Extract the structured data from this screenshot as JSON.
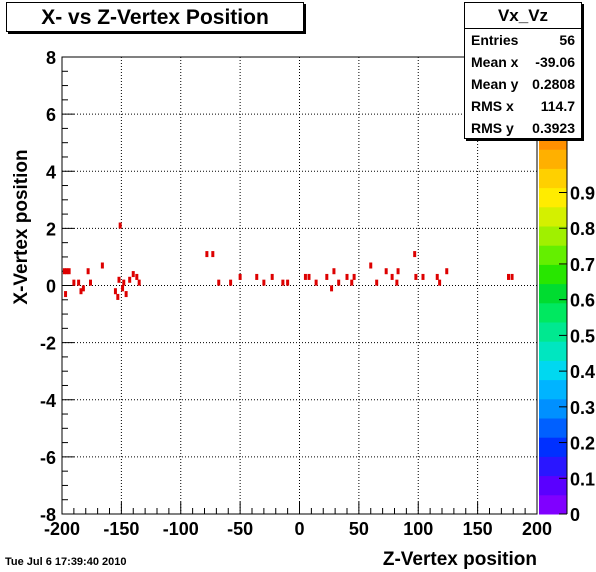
{
  "chart_data": {
    "type": "scatter",
    "title": "X- vs Z-Vertex Position",
    "xlabel": "Z-Vertex position",
    "ylabel": "X-Vertex position",
    "xlim": [
      -200,
      200
    ],
    "ylim": [
      -8,
      8
    ],
    "xticks": [
      -200,
      -150,
      -100,
      -50,
      0,
      50,
      100,
      150,
      200
    ],
    "yticks": [
      -8,
      -6,
      -4,
      -2,
      0,
      2,
      4,
      6,
      8
    ],
    "grid": true,
    "colorbar": {
      "range": [
        0,
        1
      ],
      "ticks": [
        "0",
        "0.1",
        "0.2",
        "0.3",
        "0.4",
        "0.5",
        "0.6",
        "0.7",
        "0.8",
        "0.9"
      ],
      "colors": [
        "#8000ff",
        "#5a00ff",
        "#2a16ff",
        "#0030ff",
        "#0060ff",
        "#0090ff",
        "#00b4ff",
        "#00d8f0",
        "#00e6c0",
        "#00e890",
        "#00e860",
        "#00dc30",
        "#28e600",
        "#64ef00",
        "#a0f000",
        "#d4f000",
        "#ffec00",
        "#ffd000",
        "#ffb000",
        "#ff9000"
      ]
    },
    "marker_color": "#dd0000",
    "points": [
      [
        -198,
        0.5
      ],
      [
        -196,
        0.5
      ],
      [
        -194,
        0.5
      ],
      [
        -197,
        -0.3
      ],
      [
        -190,
        0.1
      ],
      [
        -186,
        0.1
      ],
      [
        -184,
        -0.2
      ],
      [
        -182,
        -0.1
      ],
      [
        -178,
        0.5
      ],
      [
        -176,
        0.1
      ],
      [
        -166,
        0.7
      ],
      [
        -155,
        -0.2
      ],
      [
        -153,
        -0.4
      ],
      [
        -152,
        0.2
      ],
      [
        -151,
        2.1
      ],
      [
        -149,
        -0.1
      ],
      [
        -148,
        0.1
      ],
      [
        -146,
        -0.3
      ],
      [
        -143,
        0.2
      ],
      [
        -140,
        0.4
      ],
      [
        -137,
        0.3
      ],
      [
        -135,
        0.1
      ],
      [
        -78,
        1.1
      ],
      [
        -73,
        1.1
      ],
      [
        -68,
        0.1
      ],
      [
        -58,
        0.1
      ],
      [
        -50,
        0.3
      ],
      [
        -36,
        0.3
      ],
      [
        -30,
        0.1
      ],
      [
        -23,
        0.3
      ],
      [
        -14,
        0.1
      ],
      [
        -10,
        0.1
      ],
      [
        5,
        0.3
      ],
      [
        8,
        0.3
      ],
      [
        14,
        0.1
      ],
      [
        23,
        0.3
      ],
      [
        27,
        -0.1
      ],
      [
        29,
        0.5
      ],
      [
        33,
        0.1
      ],
      [
        40,
        0.3
      ],
      [
        44,
        0.1
      ],
      [
        46,
        0.3
      ],
      [
        60,
        0.7
      ],
      [
        65,
        0.1
      ],
      [
        73,
        0.5
      ],
      [
        78,
        0.3
      ],
      [
        82,
        0.1
      ],
      [
        83,
        0.5
      ],
      [
        97,
        1.1
      ],
      [
        98,
        0.3
      ],
      [
        104,
        0.3
      ],
      [
        116,
        0.3
      ],
      [
        118,
        0.1
      ],
      [
        124,
        0.5
      ],
      [
        176,
        0.3
      ],
      [
        179,
        0.3
      ]
    ]
  },
  "stats": {
    "name": "Vx_Vz",
    "rows": [
      {
        "label": "Entries",
        "value": "56"
      },
      {
        "label": "Mean x",
        "value": "-39.06"
      },
      {
        "label": "Mean y",
        "value": "0.2808"
      },
      {
        "label": "RMS x",
        "value": "114.7"
      },
      {
        "label": "RMS y",
        "value": "0.3923"
      }
    ]
  },
  "timestamp": "Tue Jul  6 17:39:40 2010"
}
